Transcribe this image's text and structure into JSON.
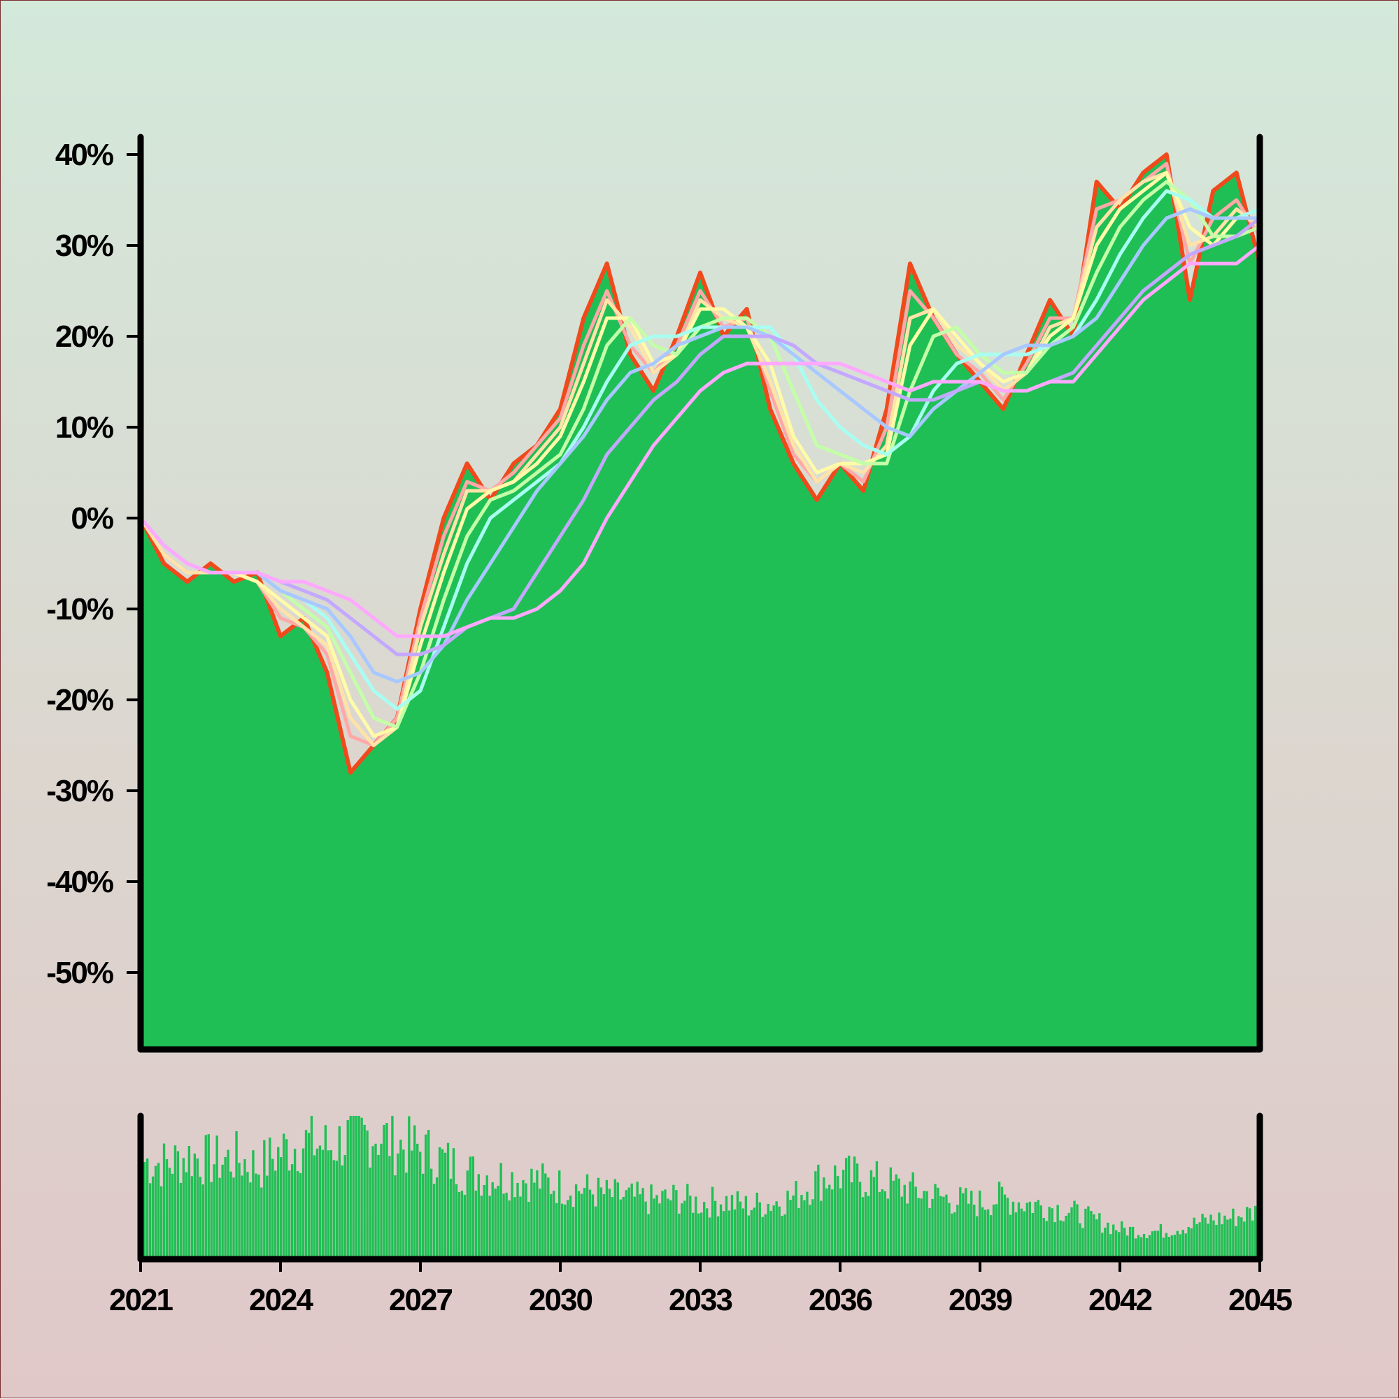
{
  "colors": {
    "background_top": "#d3e9da",
    "background_bottom": "#e0c8c8",
    "area_fill": "#20bf55",
    "price_line": "#f04a1c",
    "axis": "#000000",
    "volume": "#20bf55",
    "ma_colors": [
      "#ffa8a8",
      "#ffe3a8",
      "#fffba8",
      "#c4ffa8",
      "#a8fff1",
      "#a8c8ff",
      "#c4a8ff",
      "#ffa8ff"
    ]
  },
  "chart_data": [
    {
      "type": "area",
      "panel": "price",
      "title": "",
      "xlabel": "",
      "ylabel": "",
      "xlim": [
        2021,
        2045
      ],
      "ylim": [
        -58,
        41
      ],
      "y_ticks": [
        40,
        30,
        20,
        10,
        0,
        -10,
        -20,
        -30,
        -40,
        -50
      ],
      "y_tick_labels": [
        "40%",
        "30%",
        "20%",
        "10%",
        "0%",
        "-10%",
        "-20%",
        "-30%",
        "-40%",
        "-50%"
      ],
      "grid": false,
      "legend": "none",
      "series": [
        {
          "role": "price",
          "x": [
            2021.0,
            2021.5,
            2022.0,
            2022.5,
            2023.0,
            2023.5,
            2024.0,
            2024.5,
            2025.0,
            2025.5,
            2026.0,
            2026.5,
            2027.0,
            2027.5,
            2028.0,
            2028.5,
            2029.0,
            2029.5,
            2030.0,
            2030.5,
            2031.0,
            2031.5,
            2032.0,
            2032.5,
            2033.0,
            2033.5,
            2034.0,
            2034.5,
            2035.0,
            2035.5,
            2036.0,
            2036.5,
            2037.0,
            2037.5,
            2038.0,
            2038.5,
            2039.0,
            2039.5,
            2040.0,
            2040.5,
            2041.0,
            2041.5,
            2042.0,
            2042.5,
            2043.0,
            2043.5,
            2044.0,
            2044.5,
            2045.0
          ],
          "values": [
            0,
            -5,
            -7,
            -5,
            -7,
            -6,
            -13,
            -11,
            -17,
            -28,
            -25,
            -22,
            -10,
            0,
            6,
            2,
            6,
            8,
            12,
            22,
            28,
            18,
            14,
            20,
            27,
            20,
            23,
            12,
            6,
            2,
            6,
            3,
            12,
            28,
            22,
            18,
            15,
            12,
            18,
            24,
            20,
            37,
            34,
            38,
            40,
            24,
            36,
            38,
            28
          ]
        },
        {
          "role": "moving-average",
          "values": [
            0,
            -4,
            -6,
            -6,
            -6,
            -7,
            -11,
            -12,
            -15,
            -24,
            -25,
            -22,
            -11,
            -2,
            4,
            3,
            5,
            8,
            11,
            19,
            25,
            19,
            16,
            19,
            25,
            21,
            22,
            14,
            7,
            4,
            6,
            4,
            10,
            25,
            22,
            18,
            16,
            13,
            17,
            22,
            22,
            34,
            35,
            37,
            39,
            28,
            33,
            35,
            31
          ]
        },
        {
          "role": "moving-average",
          "values": [
            0,
            -4,
            -6,
            -6,
            -6,
            -7,
            -10,
            -12,
            -14,
            -22,
            -25,
            -23,
            -12,
            -4,
            3,
            3,
            4,
            7,
            10,
            17,
            24,
            21,
            16,
            18,
            24,
            22,
            21,
            15,
            8,
            4,
            6,
            5,
            8,
            22,
            23,
            19,
            17,
            14,
            16,
            21,
            22,
            32,
            35,
            37,
            38,
            30,
            31,
            34,
            32
          ]
        },
        {
          "role": "moving-average",
          "values": [
            0,
            -3,
            -5,
            -6,
            -6,
            -7,
            -9,
            -11,
            -13,
            -20,
            -24,
            -23,
            -14,
            -6,
            1,
            3,
            4,
            6,
            9,
            15,
            22,
            22,
            17,
            18,
            23,
            23,
            21,
            17,
            9,
            5,
            6,
            6,
            7,
            19,
            23,
            20,
            17,
            15,
            16,
            20,
            22,
            30,
            34,
            36,
            38,
            32,
            30,
            33,
            33
          ]
        },
        {
          "role": "moving-average",
          "values": [
            0,
            -3,
            -5,
            -6,
            -6,
            -6,
            -8,
            -10,
            -12,
            -17,
            -22,
            -23,
            -17,
            -9,
            -2,
            2,
            3,
            5,
            7,
            12,
            19,
            22,
            19,
            18,
            21,
            22,
            22,
            20,
            14,
            8,
            7,
            6,
            6,
            14,
            20,
            21,
            18,
            16,
            16,
            19,
            21,
            27,
            32,
            35,
            37,
            35,
            31,
            31,
            32
          ]
        },
        {
          "role": "moving-average",
          "values": [
            0,
            -3,
            -5,
            -6,
            -6,
            -6,
            -8,
            -9,
            -11,
            -15,
            -19,
            -21,
            -19,
            -12,
            -5,
            0,
            2,
            4,
            6,
            10,
            15,
            19,
            20,
            20,
            21,
            21,
            21,
            21,
            18,
            13,
            10,
            8,
            7,
            9,
            14,
            17,
            18,
            18,
            18,
            19,
            20,
            24,
            29,
            33,
            36,
            35,
            33,
            33,
            34
          ]
        },
        {
          "role": "moving-average",
          "values": [
            0,
            -3,
            -5,
            -6,
            -6,
            -6,
            -8,
            -9,
            -10,
            -13,
            -17,
            -18,
            -17,
            -14,
            -9,
            -5,
            -1,
            3,
            6,
            9,
            13,
            16,
            17,
            19,
            20,
            21,
            21,
            20,
            18,
            16,
            14,
            12,
            10,
            9,
            12,
            14,
            16,
            18,
            19,
            19,
            20,
            22,
            26,
            30,
            33,
            34,
            33,
            33,
            33
          ]
        },
        {
          "role": "moving-average",
          "values": [
            0,
            -3,
            -5,
            -6,
            -6,
            -6,
            -7,
            -8,
            -9,
            -11,
            -13,
            -15,
            -15,
            -14,
            -12,
            -11,
            -10,
            -6,
            -2,
            2,
            7,
            10,
            13,
            15,
            18,
            20,
            20,
            20,
            19,
            17,
            16,
            15,
            14,
            13,
            13,
            14,
            15,
            14,
            14,
            15,
            16,
            19,
            22,
            25,
            27,
            29,
            30,
            31,
            33
          ]
        },
        {
          "role": "moving-average",
          "values": [
            0,
            -3,
            -5,
            -6,
            -6,
            -6,
            -7,
            -7,
            -8,
            -9,
            -11,
            -13,
            -13,
            -13,
            -12,
            -11,
            -11,
            -10,
            -8,
            -5,
            0,
            4,
            8,
            11,
            14,
            16,
            17,
            17,
            17,
            17,
            17,
            16,
            15,
            14,
            15,
            15,
            15,
            14,
            14,
            15,
            15,
            18,
            21,
            24,
            26,
            28,
            28,
            28,
            30
          ]
        }
      ]
    },
    {
      "type": "bar",
      "panel": "volume",
      "xlim": [
        2021,
        2045
      ],
      "x": [
        2021.0,
        2021.5,
        2022.0,
        2022.5,
        2023.0,
        2023.5,
        2024.0,
        2024.5,
        2025.0,
        2025.5,
        2026.0,
        2026.5,
        2027.0,
        2027.5,
        2028.0,
        2028.5,
        2029.0,
        2029.5,
        2030.0,
        2030.5,
        2031.0,
        2031.5,
        2032.0,
        2032.5,
        2033.0,
        2033.5,
        2034.0,
        2034.5,
        2035.0,
        2035.5,
        2036.0,
        2036.5,
        2037.0,
        2037.5,
        2038.0,
        2038.5,
        2039.0,
        2039.5,
        2040.0,
        2040.5,
        2041.0,
        2041.5,
        2042.0,
        2042.5,
        2043.0,
        2043.5,
        2044.0,
        2044.5,
        2045.0
      ],
      "values": [
        0.7,
        0.68,
        0.74,
        0.7,
        0.72,
        0.66,
        0.78,
        0.84,
        0.8,
        0.88,
        0.9,
        0.82,
        0.78,
        0.7,
        0.62,
        0.6,
        0.58,
        0.56,
        0.52,
        0.5,
        0.46,
        0.44,
        0.42,
        0.44,
        0.4,
        0.42,
        0.38,
        0.4,
        0.44,
        0.56,
        0.6,
        0.58,
        0.54,
        0.5,
        0.46,
        0.42,
        0.4,
        0.44,
        0.4,
        0.38,
        0.34,
        0.28,
        0.22,
        0.2,
        0.2,
        0.24,
        0.28,
        0.3,
        0.34
      ],
      "x_ticks": [
        2021,
        2024,
        2027,
        2030,
        2033,
        2036,
        2039,
        2042,
        2045
      ],
      "x_tick_labels": [
        "2021",
        "2024",
        "2027",
        "2030",
        "2033",
        "2036",
        "2039",
        "2042",
        "2045"
      ]
    }
  ]
}
